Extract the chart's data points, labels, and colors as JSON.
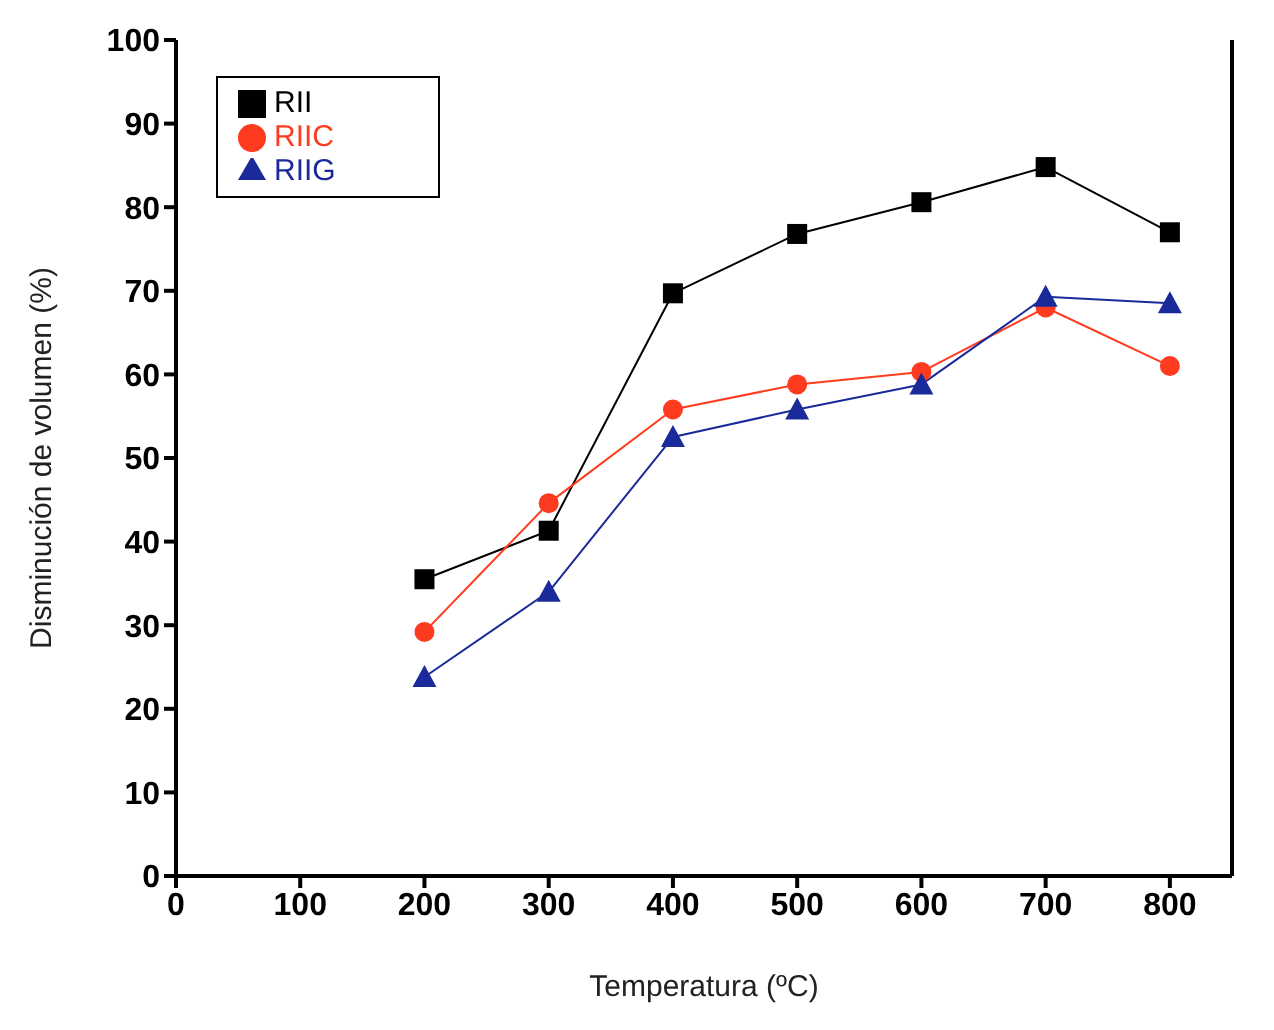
{
  "chart_data": {
    "type": "line",
    "xlabel": "Temperatura (ºC)",
    "ylabel": "Disminución de volumen (%)",
    "x": [
      200,
      300,
      400,
      500,
      600,
      700,
      800
    ],
    "series": [
      {
        "name": "RII",
        "color": "#000000",
        "marker": "square",
        "values": [
          35.5,
          41.3,
          69.7,
          76.8,
          80.6,
          84.8,
          77
        ]
      },
      {
        "name": "RIIC",
        "color": "#ff3b1f",
        "marker": "circle",
        "values": [
          29.2,
          44.6,
          55.8,
          58.8,
          60.3,
          68,
          61
        ]
      },
      {
        "name": "RIIG",
        "color": "#1a2a9a",
        "marker": "triangle",
        "values": [
          23.8,
          34,
          52.5,
          55.8,
          58.8,
          69.3,
          68.5
        ]
      }
    ],
    "xlim": [
      0,
      850
    ],
    "xticks": [
      0,
      100,
      200,
      300,
      400,
      500,
      600,
      700,
      800
    ],
    "ylim": [
      0,
      100
    ],
    "yticks": [
      0,
      10,
      20,
      30,
      40,
      50,
      60,
      70,
      80,
      90,
      100
    ],
    "grid": false,
    "legend": "top left",
    "line_style": "solid"
  }
}
